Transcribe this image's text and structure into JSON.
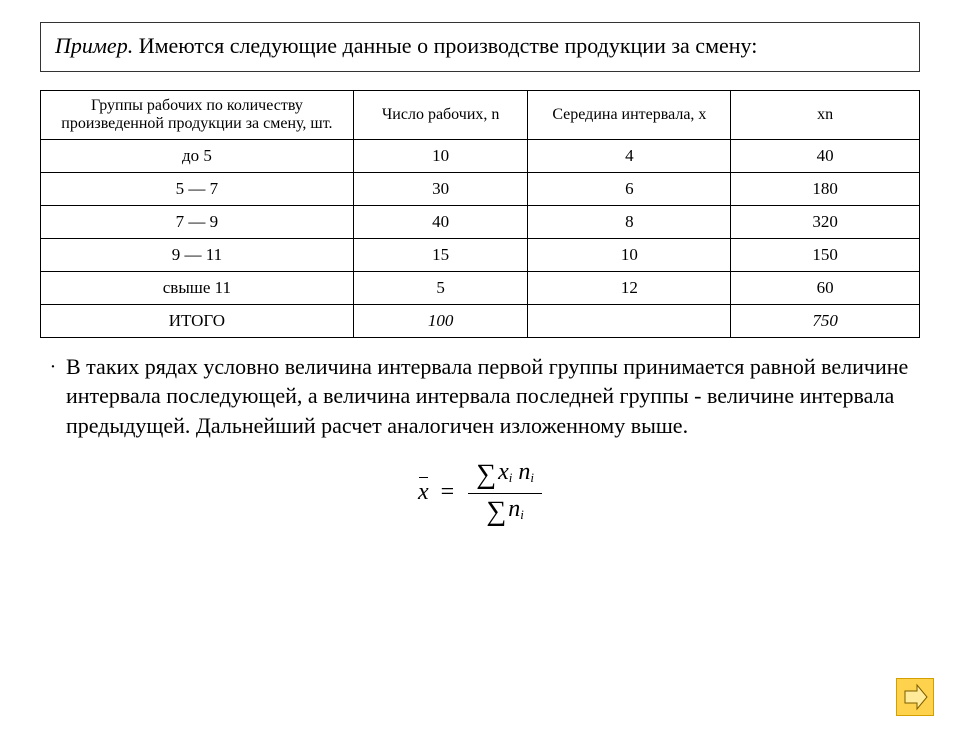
{
  "title": {
    "example_label": "Пример.",
    "text": " Имеются следующие данные о производстве продукции за смену:"
  },
  "table": {
    "headers": {
      "groups": "Группы рабочих по количеству произведенной продукции за смену, шт.",
      "n": "Число рабочих, n",
      "x": "Середина интервала, х",
      "xn": "xn"
    },
    "rows": [
      {
        "groups": "до 5",
        "groups_bold": true,
        "n": "10",
        "x": "4",
        "x_bold": true,
        "xn": "40"
      },
      {
        "groups": "5 — 7",
        "groups_bold": false,
        "n": "30",
        "x": "6",
        "x_bold": false,
        "xn": "180"
      },
      {
        "groups": "7 — 9",
        "groups_bold": false,
        "n": "40",
        "x": "8",
        "x_bold": false,
        "xn": "320"
      },
      {
        "groups": "9 — 11",
        "groups_bold": false,
        "n": "15",
        "x": "10",
        "x_bold": false,
        "xn": "150"
      },
      {
        "groups": "свыше 11",
        "groups_bold": true,
        "n": "5",
        "x": "12",
        "x_bold": true,
        "xn": "60"
      }
    ],
    "total": {
      "label": "ИТОГО",
      "n": "100",
      "x": "",
      "xn": "750"
    }
  },
  "paragraph": "В таких рядах условно величина интервала первой группы принимается равной величине интервала последующей, а величина интервала последней группы - величине интервала предыдущей. Дальнейший расчет аналогичен изложенному выше.",
  "formula": {
    "lhs": "x",
    "eq": "=",
    "num_sigma": "∑",
    "num_body_html": "x<sub>i</sub> n<sub>i</sub>",
    "den_sigma": "∑",
    "den_body_html": "n<sub>i</sub>"
  },
  "colors": {
    "border": "#333333",
    "text": "#000000",
    "icon_bg": "#ffd24d",
    "icon_border": "#d4a000",
    "icon_arrow": "#7a5c00"
  }
}
